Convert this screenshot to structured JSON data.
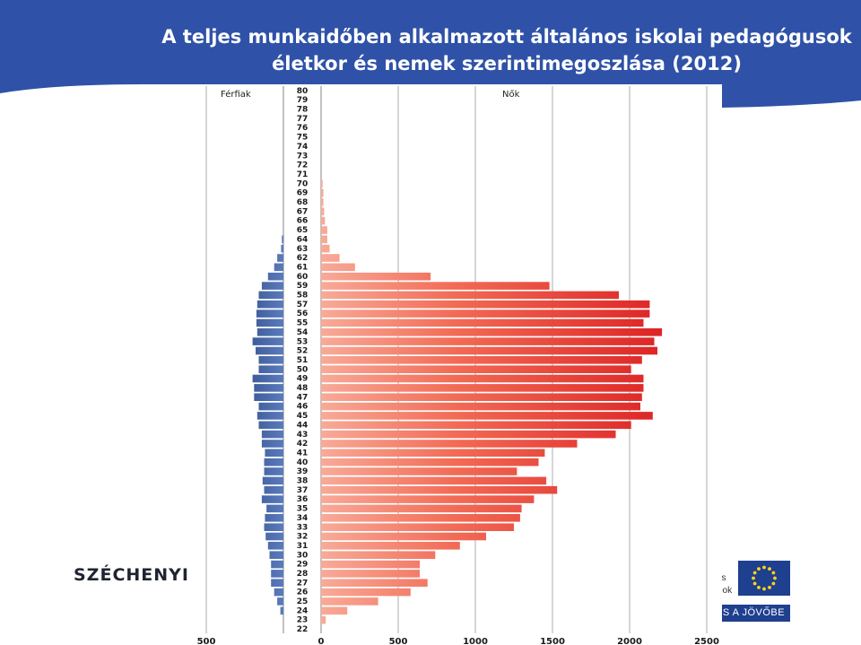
{
  "slide": {
    "title_line1": "A teljes munkaidőben alkalmazott általános iskolai pedagógusok",
    "title_line2": "életkor és nemek szerintimegoszlása (2012)",
    "logo_left": "SZÉCHENYI",
    "eu_text_line1": "lis",
    "eu_text_line2": "ook",
    "eu_band": "S A JÖVŐBE",
    "colors": {
      "header": "#2f52a8",
      "men_bar": "#1e3d78",
      "women_bar": "#e32124"
    }
  },
  "chart_data": {
    "type": "bar",
    "orientation": "horizontal",
    "title": "",
    "series_labels": {
      "men": "Férfiak",
      "women": "Nők"
    },
    "x_ticks": [
      "500",
      "0",
      "500",
      "1000",
      "1500",
      "2000",
      "2500"
    ],
    "xlim_men": [
      0,
      500
    ],
    "xlim_women": [
      0,
      2500
    ],
    "ages": [
      80,
      79,
      78,
      77,
      76,
      75,
      74,
      73,
      72,
      71,
      70,
      69,
      68,
      67,
      66,
      65,
      64,
      63,
      62,
      61,
      60,
      59,
      58,
      57,
      56,
      55,
      54,
      53,
      52,
      51,
      50,
      49,
      48,
      47,
      46,
      45,
      44,
      43,
      42,
      41,
      40,
      39,
      38,
      37,
      36,
      35,
      34,
      33,
      32,
      31,
      30,
      29,
      28,
      27,
      26,
      25,
      24,
      23,
      22
    ],
    "series": [
      {
        "name": "Férfiak",
        "values": [
          0,
          0,
          0,
          0,
          0,
          0,
          0,
          0,
          0,
          0,
          0,
          0,
          0,
          0,
          0,
          0,
          10,
          15,
          40,
          60,
          100,
          140,
          160,
          170,
          175,
          175,
          170,
          200,
          180,
          160,
          160,
          200,
          190,
          190,
          160,
          170,
          160,
          140,
          140,
          120,
          125,
          125,
          135,
          125,
          140,
          110,
          120,
          125,
          115,
          100,
          90,
          80,
          80,
          80,
          60,
          40,
          20,
          0,
          0
        ]
      },
      {
        "name": "Nők",
        "values": [
          0,
          0,
          0,
          0,
          0,
          0,
          0,
          0,
          0,
          0,
          10,
          15,
          15,
          20,
          25,
          40,
          40,
          55,
          120,
          220,
          710,
          1480,
          1930,
          2130,
          2130,
          2090,
          2210,
          2160,
          2180,
          2080,
          2010,
          2090,
          2090,
          2080,
          2070,
          2150,
          2010,
          1910,
          1660,
          1450,
          1410,
          1270,
          1460,
          1530,
          1380,
          1300,
          1290,
          1250,
          1070,
          900,
          740,
          640,
          640,
          690,
          580,
          370,
          170,
          30,
          0
        ]
      }
    ]
  }
}
